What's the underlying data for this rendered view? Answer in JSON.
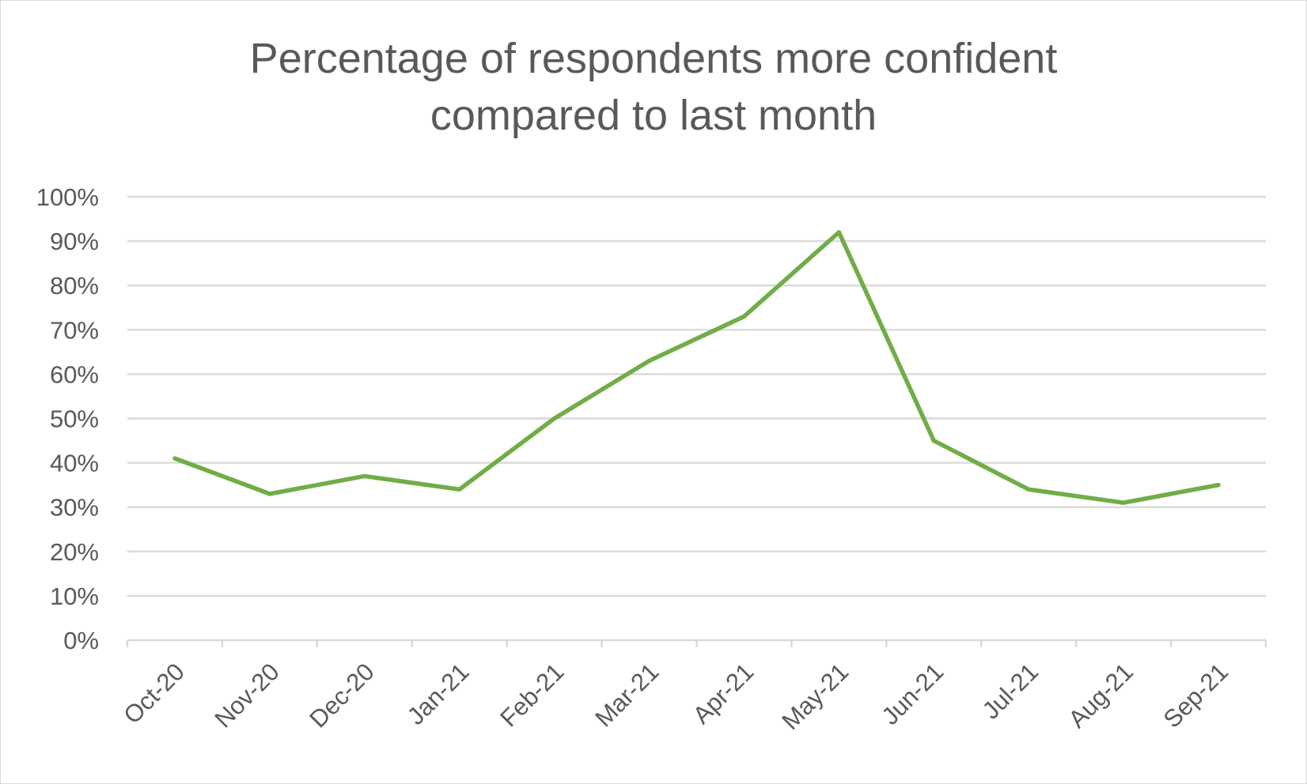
{
  "chart_data": {
    "type": "line",
    "title": "Percentage of respondents more confident compared to last month",
    "title_lines": [
      "Percentage of respondents more confident",
      "compared to last month"
    ],
    "xlabel": "",
    "ylabel": "",
    "categories": [
      "Oct-20",
      "Nov-20",
      "Dec-20",
      "Jan-21",
      "Feb-21",
      "Mar-21",
      "Apr-21",
      "May-21",
      "Jun-21",
      "Jul-21",
      "Aug-21",
      "Sep-21"
    ],
    "series": [
      {
        "values": [
          41,
          33,
          37,
          34,
          50,
          63,
          73,
          92,
          45,
          34,
          31,
          35
        ],
        "color": "#70ad47"
      }
    ],
    "ylim": [
      0,
      100
    ],
    "y_ticks": [
      0,
      10,
      20,
      30,
      40,
      50,
      60,
      70,
      80,
      90,
      100
    ],
    "y_tick_labels": [
      "0%",
      "10%",
      "20%",
      "30%",
      "40%",
      "50%",
      "60%",
      "70%",
      "80%",
      "90%",
      "100%"
    ],
    "y_unit": "%",
    "grid": true,
    "legend": "none",
    "gridline_color": "#d9d9d9",
    "axis_color": "#d9d9d9"
  }
}
